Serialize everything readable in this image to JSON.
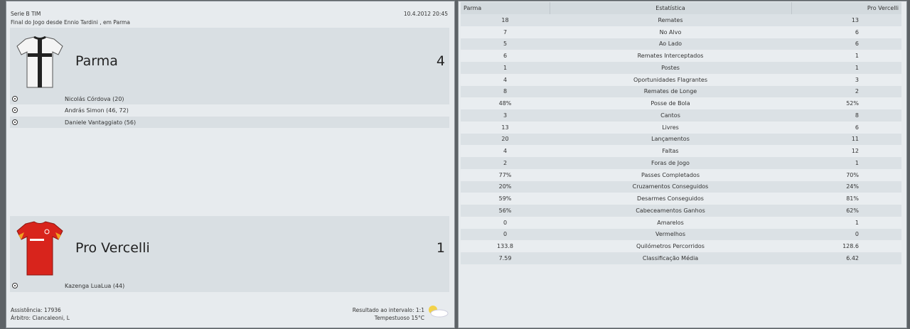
{
  "match": {
    "competition": "Serie B TIM",
    "datetime": "10.4.2012 20:45",
    "venue_line": "Final do Jogo desde Ennio Tardini , em Parma",
    "attendance": "Assistência: 17936",
    "referee": "Árbitro: Ciancaleoni, L",
    "halftime": "Resultado ao intervalo: 1:1",
    "weather": "Tempestuoso 15°C"
  },
  "home": {
    "name": "Parma",
    "score": "4",
    "scorers": [
      "Nicolás Córdova (20)",
      "András Simon (46, 72)",
      "Daniele Vantaggiato (56)"
    ]
  },
  "away": {
    "name": "Pro Vercelli",
    "score": "1",
    "scorers": [
      "Kazenga LuaLua (44)"
    ]
  },
  "stats": {
    "headers": [
      "Parma",
      "Estatística",
      "Pro Vercelli"
    ],
    "rows": [
      [
        "18",
        "Remates",
        "13"
      ],
      [
        "7",
        "No Alvo",
        "6"
      ],
      [
        "5",
        "Ao Lado",
        "6"
      ],
      [
        "6",
        "Remates Interceptados",
        "1"
      ],
      [
        "1",
        "Postes",
        "1"
      ],
      [
        "4",
        "Oportunidades Flagrantes",
        "3"
      ],
      [
        "8",
        "Remates de Longe",
        "2"
      ],
      [
        "48%",
        "Posse de Bola",
        "52%"
      ],
      [
        "3",
        "Cantos",
        "8"
      ],
      [
        "13",
        "Livres",
        "6"
      ],
      [
        "20",
        "Lançamentos",
        "11"
      ],
      [
        "4",
        "Faltas",
        "12"
      ],
      [
        "2",
        "Foras de Jogo",
        "1"
      ],
      [
        "77%",
        "Passes Completados",
        "70%"
      ],
      [
        "20%",
        "Cruzamentos Conseguidos",
        "24%"
      ],
      [
        "59%",
        "Desarmes Conseguidos",
        "81%"
      ],
      [
        "56%",
        "Cabeceamentos Ganhos",
        "62%"
      ],
      [
        "0",
        "Amarelos",
        "1"
      ],
      [
        "0",
        "Vermelhos",
        "0"
      ],
      [
        "133.8",
        "Quilómetros Percorridos",
        "128.6"
      ],
      [
        "7.59",
        "Classificação Média",
        "6.42"
      ]
    ]
  }
}
